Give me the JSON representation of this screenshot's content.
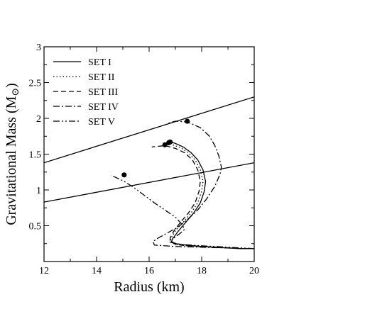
{
  "chart_data": {
    "type": "line",
    "xlabel": "Radius (km)",
    "ylabel": "Gravitational Mass (M",
    "ylabel_sub": "⊙",
    "ylabel_close": ")",
    "xlim": [
      12,
      20
    ],
    "ylim": [
      0,
      3
    ],
    "xticks": [
      12,
      14,
      16,
      18,
      20
    ],
    "xtick_labels": [
      "12",
      "14",
      "16",
      "18",
      "20"
    ],
    "yticks": [
      0.5,
      1,
      1.5,
      2,
      2.5,
      3
    ],
    "ytick_labels": [
      "0.5",
      "1",
      "1.5",
      "2",
      "2.5",
      "3"
    ],
    "grid": false,
    "legend_position": "top-left",
    "series": [
      {
        "name": "SET I",
        "dash": "solid",
        "points": [
          [
            20.0,
            0.18
          ],
          [
            19.5,
            0.18
          ],
          [
            19.0,
            0.19
          ],
          [
            18.5,
            0.2
          ],
          [
            18.0,
            0.21
          ],
          [
            17.4,
            0.23
          ],
          [
            17.0,
            0.25
          ],
          [
            16.85,
            0.28
          ],
          [
            16.9,
            0.32
          ],
          [
            17.1,
            0.42
          ],
          [
            17.4,
            0.55
          ],
          [
            17.7,
            0.68
          ],
          [
            17.95,
            0.82
          ],
          [
            18.1,
            0.98
          ],
          [
            18.15,
            1.12
          ],
          [
            18.05,
            1.28
          ],
          [
            17.85,
            1.42
          ],
          [
            17.6,
            1.52
          ],
          [
            17.3,
            1.6
          ],
          [
            17.0,
            1.65
          ],
          [
            16.8,
            1.67
          ]
        ],
        "endpoint": [
          16.8,
          1.67
        ]
      },
      {
        "name": "SET II",
        "dash": "dotted",
        "points": [
          [
            20.0,
            0.18
          ],
          [
            19.5,
            0.18
          ],
          [
            19.0,
            0.19
          ],
          [
            18.5,
            0.2
          ],
          [
            17.4,
            0.22
          ],
          [
            17.0,
            0.24
          ],
          [
            16.8,
            0.28
          ],
          [
            16.85,
            0.33
          ],
          [
            17.0,
            0.43
          ],
          [
            17.3,
            0.55
          ],
          [
            17.6,
            0.68
          ],
          [
            17.85,
            0.82
          ],
          [
            18.0,
            0.98
          ],
          [
            18.05,
            1.12
          ],
          [
            17.95,
            1.28
          ],
          [
            17.75,
            1.42
          ],
          [
            17.5,
            1.52
          ],
          [
            17.2,
            1.59
          ],
          [
            16.9,
            1.63
          ],
          [
            16.75,
            1.66
          ]
        ],
        "endpoint": [
          16.75,
          1.66
        ]
      },
      {
        "name": "SET III",
        "dash": "dashed",
        "points": [
          [
            20.0,
            0.18
          ],
          [
            19.5,
            0.18
          ],
          [
            19.0,
            0.19
          ],
          [
            18.5,
            0.2
          ],
          [
            17.4,
            0.22
          ],
          [
            17.0,
            0.24
          ],
          [
            16.8,
            0.28
          ],
          [
            16.8,
            0.33
          ],
          [
            16.95,
            0.43
          ],
          [
            17.2,
            0.55
          ],
          [
            17.5,
            0.68
          ],
          [
            17.75,
            0.82
          ],
          [
            17.9,
            0.98
          ],
          [
            17.95,
            1.12
          ],
          [
            17.85,
            1.28
          ],
          [
            17.65,
            1.42
          ],
          [
            17.35,
            1.52
          ],
          [
            17.0,
            1.58
          ],
          [
            16.6,
            1.62
          ],
          [
            16.1,
            1.6
          ]
        ],
        "endpoint": [
          16.6,
          1.63
        ]
      },
      {
        "name": "SET IV",
        "dash": "dashdot",
        "points": [
          [
            20.0,
            0.18
          ],
          [
            19.5,
            0.18
          ],
          [
            19.0,
            0.19
          ],
          [
            18.0,
            0.2
          ],
          [
            17.0,
            0.21
          ],
          [
            16.2,
            0.23
          ],
          [
            16.15,
            0.28
          ],
          [
            16.35,
            0.33
          ],
          [
            16.7,
            0.4
          ],
          [
            17.1,
            0.48
          ],
          [
            17.5,
            0.6
          ],
          [
            17.85,
            0.72
          ],
          [
            18.2,
            0.88
          ],
          [
            18.5,
            1.05
          ],
          [
            18.7,
            1.22
          ],
          [
            18.75,
            1.32
          ],
          [
            18.65,
            1.48
          ],
          [
            18.5,
            1.62
          ],
          [
            18.3,
            1.75
          ],
          [
            17.95,
            1.87
          ],
          [
            17.45,
            1.95
          ],
          [
            17.0,
            1.96
          ],
          [
            16.7,
            1.93
          ]
        ],
        "endpoint": [
          17.45,
          1.96
        ]
      },
      {
        "name": "SET V",
        "dash": "dashdotdot",
        "points": [
          [
            20.0,
            0.18
          ],
          [
            19.0,
            0.2
          ],
          [
            18.0,
            0.22
          ],
          [
            17.2,
            0.24
          ],
          [
            16.8,
            0.27
          ],
          [
            16.95,
            0.33
          ],
          [
            17.2,
            0.4
          ],
          [
            17.35,
            0.45
          ],
          [
            17.25,
            0.52
          ],
          [
            17.0,
            0.62
          ],
          [
            16.6,
            0.72
          ],
          [
            16.2,
            0.82
          ],
          [
            15.8,
            0.93
          ],
          [
            15.4,
            1.04
          ],
          [
            15.0,
            1.13
          ],
          [
            14.7,
            1.18
          ],
          [
            14.55,
            1.2
          ]
        ],
        "endpoint": [
          15.05,
          1.21
        ]
      }
    ],
    "reference_lines": [
      {
        "x": [
          12,
          20
        ],
        "y": [
          1.38,
          2.3
        ]
      },
      {
        "x": [
          12,
          20
        ],
        "y": [
          0.83,
          1.38
        ]
      }
    ]
  }
}
